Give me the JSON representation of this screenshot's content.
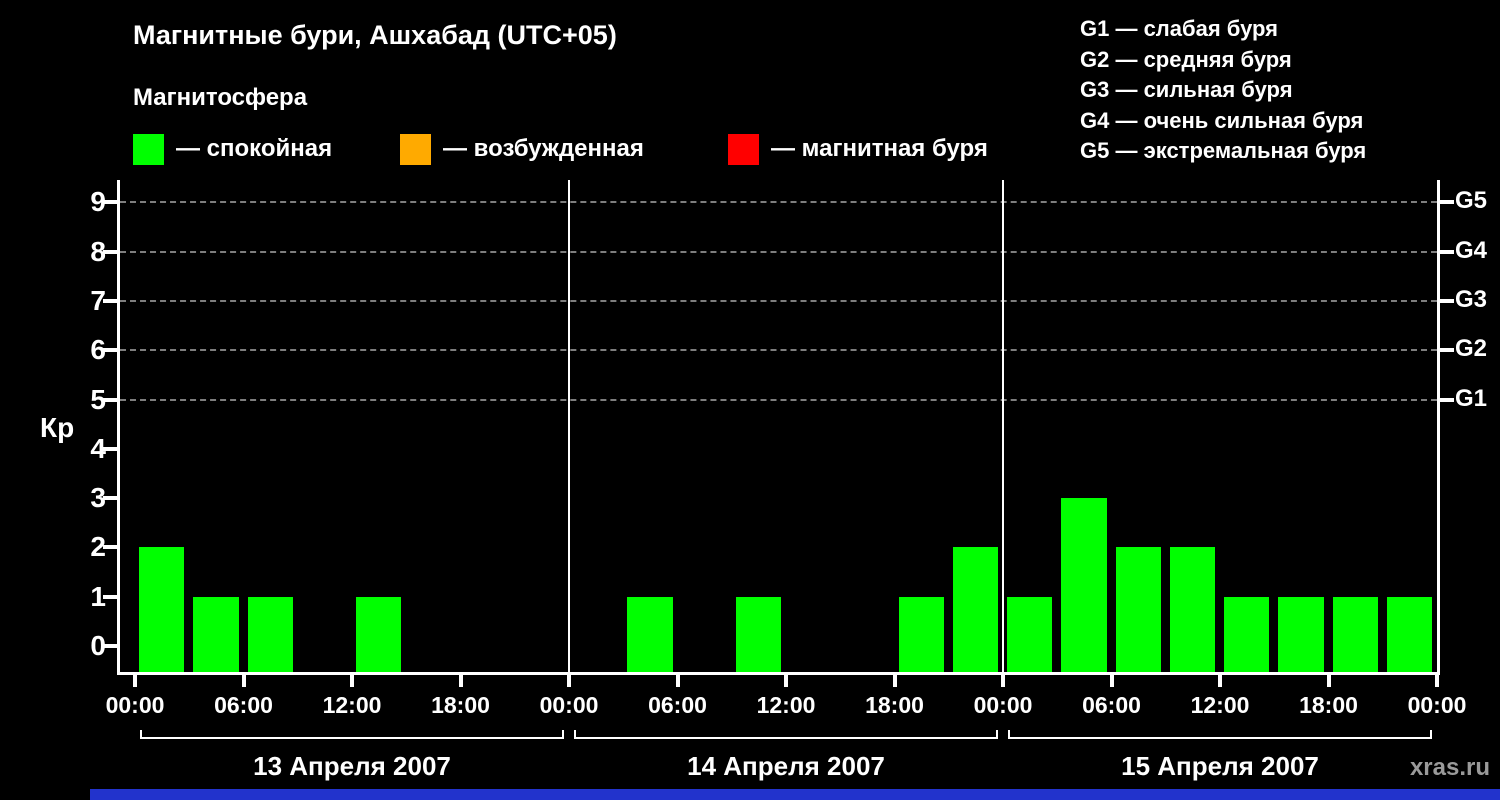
{
  "header": {
    "title": "Магнитные бури, Ашхабад (UTC+05)",
    "subtitle": "Магнитосфера",
    "legend": [
      {
        "label": "— спокойная",
        "color": "#00ff00"
      },
      {
        "label": "— возбужденная",
        "color": "#ffaa00"
      },
      {
        "label": "— магнитная буря",
        "color": "#ff0000"
      }
    ],
    "storm_scale": [
      "G1 — слабая буря",
      "G2 — средняя буря",
      "G3 — сильная буря",
      "G4 — очень сильная буря",
      "G5 — экстремальная буря"
    ]
  },
  "chart_data": {
    "type": "bar",
    "title": "Магнитные бури, Ашхабад (UTC+05)",
    "ylabel": "Кр",
    "ylim": [
      0,
      9
    ],
    "yticks": [
      0,
      1,
      2,
      3,
      4,
      5,
      6,
      7,
      8,
      9
    ],
    "grid_levels": [
      5,
      6,
      7,
      8,
      9
    ],
    "grid": "dashed horizontal lines at Kp 5-9 only",
    "legend_position": "top",
    "right_axis_labels": [
      {
        "label": "G1",
        "kp": 5
      },
      {
        "label": "G2",
        "kp": 6
      },
      {
        "label": "G3",
        "kp": 7
      },
      {
        "label": "G4",
        "kp": 8
      },
      {
        "label": "G5",
        "kp": 9
      }
    ],
    "bar_color": "#00ff00",
    "interval_hours": 3,
    "x_time_labels": [
      "00:00",
      "06:00",
      "12:00",
      "18:00",
      "00:00",
      "06:00",
      "12:00",
      "18:00",
      "00:00",
      "06:00",
      "12:00",
      "18:00",
      "00:00"
    ],
    "days": [
      {
        "label": "13 Апреля 2007",
        "values": [
          2,
          1,
          1,
          0,
          1,
          0,
          0,
          0
        ]
      },
      {
        "label": "14 Апреля 2007",
        "values": [
          0,
          1,
          0,
          1,
          0,
          0,
          1,
          2
        ]
      },
      {
        "label": "15 Апреля 2007",
        "values": [
          1,
          3,
          2,
          2,
          1,
          1,
          1,
          1
        ]
      }
    ]
  },
  "watermark": "xras.ru",
  "footer_bar_color": "#2233cc"
}
